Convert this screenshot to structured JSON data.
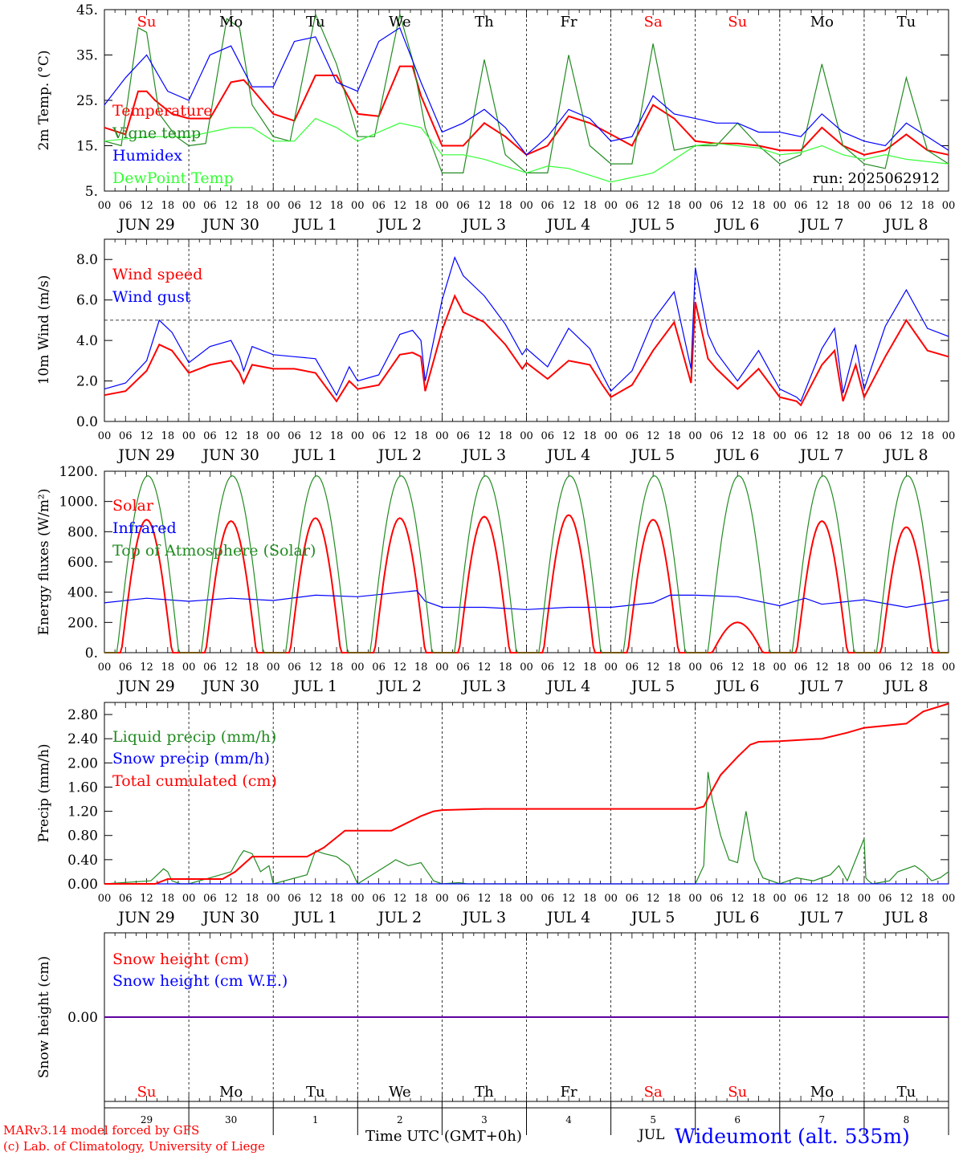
{
  "footer": {
    "model": "MARv3.14 model forced by GFS",
    "copyright": "(c) Lab. of Climatology, University of Liege",
    "time_label": "Time UTC (GMT+0h)",
    "month": "JUL",
    "station": "Wideumont (alt. 535m)"
  },
  "colors": {
    "red": "#ff0000",
    "green": "#228b22",
    "blue": "#0000ff",
    "lightgreen": "#33ff33",
    "dark": "#000000"
  },
  "x_axis": {
    "hour_ticks": [
      "00",
      "06",
      "12",
      "18"
    ],
    "dates": [
      "JUN 29",
      "JUN 30",
      "JUL  1",
      "JUL  2",
      "JUL  3",
      "JUL  4",
      "JUL  5",
      "JUL  6",
      "JUL  7",
      "JUL  8"
    ],
    "weekdays": [
      "Su",
      "Mo",
      "Tu",
      "We",
      "Th",
      "Fr",
      "Sa",
      "Su",
      "Mo",
      "Tu"
    ],
    "weekday_colors": [
      "red",
      "dark",
      "dark",
      "dark",
      "dark",
      "dark",
      "red",
      "red",
      "dark",
      "dark"
    ],
    "day_numbers": [
      "29",
      "30",
      "1",
      "2",
      "3",
      "4",
      "5",
      "6",
      "7",
      "8"
    ]
  },
  "chart_data": [
    {
      "type": "line",
      "ylabel": "2m Temp. (°C)",
      "ylim": [
        5,
        45
      ],
      "yticks": [
        "5.",
        "15.",
        "25.",
        "35.",
        "45."
      ],
      "run_label": "run: 2025062912",
      "x_unit": "days since 2025-06-29 00 UTC",
      "series": [
        {
          "name": "Temperature",
          "color": "red",
          "x": [
            0,
            0.25,
            0.4,
            0.5,
            0.6,
            0.8,
            1,
            1.25,
            1.5,
            1.65,
            1.75,
            2,
            2.25,
            2.5,
            2.75,
            3,
            3.25,
            3.5,
            3.65,
            3.75,
            4,
            4.25,
            4.5,
            4.75,
            5,
            5.25,
            5.5,
            5.75,
            6,
            6.25,
            6.5,
            6.75,
            7,
            7.25,
            7.5,
            7.75,
            8,
            8.25,
            8.5,
            8.75,
            9,
            9.25,
            9.5,
            9.75,
            10
          ],
          "y": [
            19,
            17.5,
            27,
            27,
            25,
            22,
            21,
            21,
            29,
            29.5,
            27.5,
            22,
            20.5,
            30.5,
            30.5,
            22,
            21.5,
            32.5,
            32.5,
            26,
            15,
            15,
            20,
            17,
            13,
            15,
            21.5,
            20,
            17.5,
            15,
            24,
            21,
            16,
            15.5,
            15.5,
            15,
            14,
            14,
            19,
            15,
            13,
            14,
            17.5,
            14,
            13
          ]
        },
        {
          "name": "Vigne temp",
          "color": "green",
          "x": [
            0,
            0.2,
            0.4,
            0.5,
            0.65,
            0.85,
            1,
            1.2,
            1.45,
            1.6,
            1.75,
            2,
            2.2,
            2.5,
            2.75,
            3,
            3.2,
            3.5,
            3.65,
            3.8,
            4,
            4.25,
            4.5,
            4.75,
            5,
            5.25,
            5.5,
            5.75,
            6,
            6.25,
            6.5,
            6.75,
            7,
            7.25,
            7.5,
            7.75,
            8,
            8.25,
            8.5,
            8.75,
            9,
            9.25,
            9.5,
            9.75,
            10
          ],
          "y": [
            16,
            15,
            41,
            40,
            22,
            17,
            15,
            15.5,
            43,
            41,
            24,
            17,
            16,
            44,
            33,
            17,
            17,
            44,
            34,
            19,
            9,
            9,
            34,
            13,
            9,
            9,
            35,
            15,
            11,
            11,
            37.5,
            14,
            15,
            15,
            20,
            15,
            11,
            13,
            33,
            15,
            11,
            10,
            30,
            14,
            11
          ]
        },
        {
          "name": "Humidex",
          "color": "blue",
          "x": [
            0,
            0.25,
            0.5,
            0.75,
            1,
            1.25,
            1.5,
            1.75,
            2,
            2.25,
            2.5,
            2.75,
            3,
            3.25,
            3.5,
            3.75,
            4,
            4.25,
            4.5,
            4.75,
            5,
            5.25,
            5.5,
            5.75,
            6,
            6.25,
            6.5,
            6.75,
            7,
            7.25,
            7.5,
            7.75,
            8,
            8.25,
            8.5,
            8.75,
            9,
            9.25,
            9.5,
            9.75,
            10
          ],
          "y": [
            24,
            30,
            35,
            27,
            25,
            35,
            37,
            28,
            28,
            38,
            39,
            29,
            27,
            38,
            41,
            29,
            18,
            20,
            23,
            19,
            13,
            17,
            23,
            21,
            16,
            17,
            26,
            22,
            21,
            20,
            20,
            18,
            18,
            17,
            22,
            18,
            16,
            15,
            20,
            17,
            14
          ]
        },
        {
          "name": "DewPoint Temp",
          "color": "lightgreen",
          "x": [
            0,
            0.5,
            1,
            1.5,
            1.75,
            2,
            2.25,
            2.5,
            2.75,
            3,
            3.25,
            3.5,
            3.75,
            4,
            4.25,
            4.5,
            5,
            5.25,
            5.5,
            6,
            6.5,
            7,
            7.25,
            7.5,
            7.75,
            8,
            8.25,
            8.5,
            8.75,
            9,
            9.25,
            9.5,
            9.75,
            10
          ],
          "y": [
            16,
            17,
            17,
            19,
            19,
            16,
            16,
            21,
            19,
            16,
            18,
            20,
            19,
            13,
            13,
            12,
            9,
            10.5,
            10,
            7,
            9,
            15,
            15.5,
            15,
            14.5,
            13,
            13.5,
            15,
            13,
            12,
            13,
            12,
            11.5,
            11
          ]
        }
      ]
    },
    {
      "type": "line",
      "ylabel": "10m Wind (m/s)",
      "ylim": [
        0,
        9
      ],
      "yticks": [
        "0.0",
        "2.0",
        "4.0",
        "6.0",
        "8.0"
      ],
      "reference_line": 5,
      "x_unit": "days since 2025-06-29 00 UTC",
      "series": [
        {
          "name": "Wind speed",
          "color": "red",
          "x": [
            0,
            0.25,
            0.5,
            0.65,
            0.8,
            1,
            1.25,
            1.5,
            1.6,
            1.65,
            1.75,
            2,
            2.25,
            2.5,
            2.75,
            2.9,
            3,
            3.25,
            3.5,
            3.65,
            3.75,
            3.8,
            4,
            4.15,
            4.25,
            4.5,
            4.75,
            4.95,
            5,
            5.25,
            5.5,
            5.75,
            5.9,
            6,
            6.25,
            6.5,
            6.75,
            6.95,
            7,
            7.15,
            7.25,
            7.5,
            7.75,
            8,
            8.2,
            8.25,
            8.5,
            8.65,
            8.75,
            8.9,
            9,
            9.25,
            9.5,
            9.75,
            10
          ],
          "y": [
            1.3,
            1.5,
            2.5,
            3.8,
            3.5,
            2.4,
            2.8,
            3.0,
            2.4,
            1.9,
            2.8,
            2.6,
            2.6,
            2.4,
            1.0,
            2.0,
            1.6,
            1.8,
            3.3,
            3.4,
            3.2,
            1.5,
            4.5,
            6.2,
            5.4,
            4.9,
            3.8,
            2.6,
            2.9,
            2.1,
            3.0,
            2.8,
            1.8,
            1.2,
            1.8,
            3.5,
            4.9,
            1.9,
            5.9,
            3.1,
            2.6,
            1.6,
            2.6,
            1.2,
            1.0,
            0.8,
            2.8,
            3.5,
            1.0,
            2.8,
            1.2,
            3.2,
            5.0,
            3.5,
            3.2
          ]
        },
        {
          "name": "Wind gust",
          "color": "blue",
          "x": [
            0,
            0.25,
            0.5,
            0.65,
            0.8,
            1,
            1.25,
            1.5,
            1.6,
            1.65,
            1.75,
            2,
            2.25,
            2.5,
            2.75,
            2.9,
            3,
            3.25,
            3.5,
            3.65,
            3.75,
            3.8,
            4,
            4.15,
            4.25,
            4.5,
            4.75,
            4.95,
            5,
            5.25,
            5.5,
            5.75,
            5.9,
            6,
            6.25,
            6.5,
            6.75,
            6.95,
            7,
            7.15,
            7.25,
            7.5,
            7.75,
            8,
            8.2,
            8.25,
            8.5,
            8.65,
            8.75,
            8.9,
            9,
            9.25,
            9.5,
            9.75,
            10
          ],
          "y": [
            1.6,
            1.9,
            3.0,
            5.0,
            4.4,
            2.9,
            3.7,
            4.0,
            3.2,
            2.5,
            3.7,
            3.3,
            3.2,
            3.1,
            1.3,
            2.7,
            2.0,
            2.3,
            4.3,
            4.5,
            4.0,
            2.0,
            6.0,
            8.1,
            7.2,
            6.2,
            4.8,
            3.3,
            3.6,
            2.7,
            4.6,
            3.6,
            2.3,
            1.5,
            2.5,
            5.0,
            6.4,
            2.6,
            7.6,
            4.3,
            3.4,
            2.0,
            3.5,
            1.6,
            1.2,
            1.0,
            3.6,
            4.6,
            1.4,
            3.8,
            1.6,
            4.7,
            6.5,
            4.6,
            4.2
          ]
        }
      ]
    },
    {
      "type": "line",
      "ylabel": "Energy fluxes (W/m²)",
      "ylim": [
        0,
        1200
      ],
      "yticks": [
        "0.",
        "200.",
        "400.",
        "600.",
        "800.",
        "1000.",
        "1200."
      ],
      "x_unit": "days since 2025-06-29 00 UTC",
      "series": [
        {
          "name": "Solar",
          "color": "red",
          "daily_peaks": [
            880,
            870,
            890,
            890,
            900,
            910,
            880,
            200,
            870,
            830
          ],
          "notes": "diurnal cycles; day 6 and 7 partly cloudy"
        },
        {
          "name": "Infrared",
          "color": "blue",
          "x": [
            0,
            0.5,
            1,
            1.5,
            2,
            2.5,
            3,
            3.7,
            3.8,
            4,
            4.5,
            5,
            5.5,
            6,
            6.5,
            6.7,
            7,
            7.5,
            8,
            8.3,
            8.5,
            9,
            9.5,
            10
          ],
          "y": [
            330,
            360,
            340,
            360,
            345,
            380,
            370,
            410,
            340,
            300,
            300,
            285,
            300,
            300,
            330,
            380,
            380,
            370,
            310,
            360,
            320,
            350,
            300,
            350
          ]
        },
        {
          "name": "Top of Atmosphere (Solar)",
          "color": "green",
          "daily_peak": 1170
        }
      ]
    },
    {
      "type": "line",
      "ylabel": "Precip (mm/h)",
      "ylim": [
        0,
        3.0
      ],
      "yticks": [
        "0.00",
        "0.40",
        "0.80",
        "1.20",
        "1.60",
        "2.00",
        "2.40",
        "2.80"
      ],
      "x_unit": "days since 2025-06-29 00 UTC",
      "series": [
        {
          "name": "Liquid precip (mm/h)",
          "color": "green",
          "x": [
            0,
            0.55,
            0.65,
            0.7,
            0.75,
            0.8,
            0.9,
            1,
            1.5,
            1.6,
            1.65,
            1.75,
            1.8,
            1.85,
            1.95,
            2,
            2.4,
            2.5,
            2.6,
            2.75,
            2.9,
            3,
            3.4,
            3.45,
            3.6,
            3.75,
            3.8,
            3.9,
            4,
            4.2,
            4.3,
            7,
            7.1,
            7.15,
            7.2,
            7.3,
            7.4,
            7.5,
            7.6,
            7.7,
            7.8,
            8,
            8.2,
            8.4,
            8.6,
            8.7,
            8.8,
            9,
            9.02,
            9.05,
            9.1,
            9.3,
            9.4,
            9.6,
            9.7,
            9.8,
            9.9,
            10
          ],
          "y": [
            0,
            0.05,
            0.18,
            0.25,
            0.2,
            0.05,
            0,
            0,
            0.2,
            0.45,
            0.55,
            0.5,
            0.35,
            0.2,
            0.3,
            0,
            0.15,
            0.55,
            0.5,
            0.45,
            0.3,
            0,
            0.35,
            0.4,
            0.3,
            0.35,
            0.25,
            0.05,
            0,
            0.02,
            0,
            0,
            0.3,
            1.85,
            1.4,
            0.8,
            0.4,
            0.35,
            1.2,
            0.4,
            0.1,
            0,
            0.1,
            0.05,
            0.15,
            0.3,
            0.05,
            0.75,
            0.1,
            0.05,
            0,
            0.05,
            0.2,
            0.3,
            0.2,
            0.05,
            0.1,
            0.2
          ]
        },
        {
          "name": "Snow precip (mm/h)",
          "color": "blue",
          "x": [
            0,
            10
          ],
          "y": [
            0,
            0
          ]
        },
        {
          "name": "Total cumulated (cm)",
          "color": "red",
          "x": [
            0,
            0.6,
            0.75,
            1,
            1.4,
            1.55,
            1.75,
            2,
            2.4,
            2.6,
            2.85,
            3,
            3.4,
            3.75,
            3.9,
            4,
            4.5,
            5,
            6,
            7,
            7.1,
            7.2,
            7.3,
            7.5,
            7.65,
            7.75,
            8,
            8.5,
            8.8,
            9,
            9.5,
            9.7,
            10
          ],
          "y": [
            0,
            0,
            0.08,
            0.08,
            0.08,
            0.2,
            0.45,
            0.45,
            0.45,
            0.6,
            0.88,
            0.88,
            0.88,
            1.12,
            1.2,
            1.22,
            1.24,
            1.24,
            1.24,
            1.24,
            1.28,
            1.55,
            1.8,
            2.1,
            2.3,
            2.35,
            2.36,
            2.4,
            2.5,
            2.58,
            2.65,
            2.85,
            2.98
          ]
        }
      ]
    },
    {
      "type": "line",
      "ylabel": "Snow height (cm)",
      "ylim": [
        -1,
        1
      ],
      "yticks": [
        "0.00"
      ],
      "x_unit": "days since 2025-06-29 00 UTC",
      "series": [
        {
          "name": "Snow height (cm)",
          "color": "red",
          "x": [
            0,
            10
          ],
          "y": [
            0,
            0
          ]
        },
        {
          "name": "Snow height (cm W.E.)",
          "color": "blue",
          "x": [
            0,
            10
          ],
          "y": [
            0,
            0
          ]
        }
      ]
    }
  ]
}
